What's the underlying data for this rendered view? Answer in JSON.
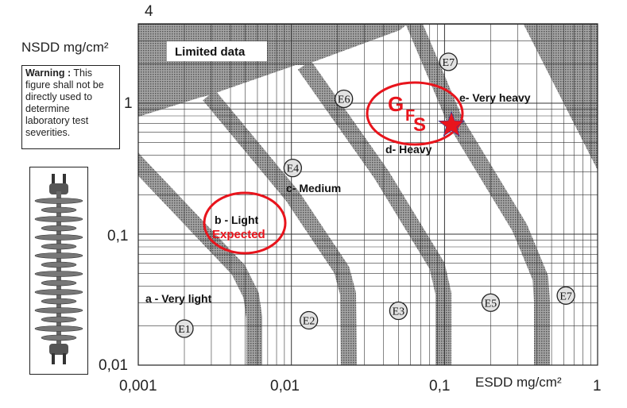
{
  "y_axis": {
    "title": "NSDD mg/cm²",
    "ticks": [
      "4",
      "1",
      "0,1",
      "0,01"
    ]
  },
  "x_axis": {
    "title": "ESDD mg/cm²",
    "ticks": [
      "0,001",
      "0,01",
      "0,1",
      "1"
    ]
  },
  "warning": {
    "bold": "Warning :",
    "text": " This figure shall not be directly used to determine laboratory test severities."
  },
  "limited_data_label": "Limited data",
  "zones": {
    "a": "a - Very light",
    "b": "b - Light",
    "c": "c- Medium",
    "d": "d- Heavy",
    "e": "e- Very heavy"
  },
  "annotations": {
    "expected": "Expected",
    "gfs": [
      "G",
      "F",
      "S"
    ]
  },
  "colors": {
    "annotation": "#e8141c",
    "band": "#8c8c8c",
    "grid": "#333333"
  },
  "chart_data": {
    "type": "scatter",
    "xlabel": "ESDD mg/cm²",
    "ylabel": "NSDD mg/cm²",
    "xscale": "log",
    "yscale": "log",
    "xlim": [
      0.001,
      1
    ],
    "ylim": [
      0.01,
      4
    ],
    "grid": true,
    "x_tick_labels": [
      "0,001",
      "0,01",
      "0,1",
      "1"
    ],
    "y_tick_labels": [
      "0,01",
      "0,1",
      "1",
      "4"
    ],
    "points": [
      {
        "label": "E1",
        "x": 0.002,
        "y": 0.019
      },
      {
        "label": "E2",
        "x": 0.013,
        "y": 0.022
      },
      {
        "label": "E3",
        "x": 0.05,
        "y": 0.026
      },
      {
        "label": "E5",
        "x": 0.2,
        "y": 0.03
      },
      {
        "label": "E7",
        "x": 0.62,
        "y": 0.034
      },
      {
        "label": "E4",
        "x": 0.0102,
        "y": 0.32
      },
      {
        "label": "E6",
        "x": 0.022,
        "y": 1.08
      },
      {
        "label": "E7",
        "x": 0.106,
        "y": 2.07
      }
    ],
    "highlight": {
      "marker": "star",
      "x": 0.111,
      "y": 0.68,
      "color": "#e8141c"
    }
  }
}
